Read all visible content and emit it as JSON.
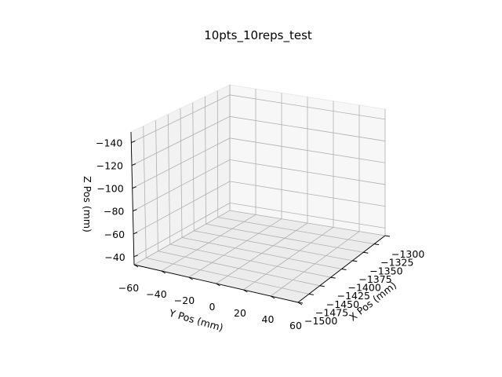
{
  "chart_data": {
    "type": "scatter",
    "projection": "3d",
    "title": "10pts_10reps_test",
    "xlabel": "X Pos (mm)",
    "ylabel": "Y Pos (mm)",
    "zlabel": "Z Pos (mm)",
    "x_ticks": [
      "−1300",
      "−1325",
      "−1350",
      "−1375",
      "−1400",
      "−1425",
      "−1450",
      "−1475",
      "−1500"
    ],
    "y_ticks": [
      "−60",
      "−40",
      "−20",
      "0",
      "20",
      "40",
      "60"
    ],
    "z_ticks": [
      "−140",
      "−120",
      "−100",
      "−80",
      "−60",
      "−40"
    ],
    "xlim": [
      -1500,
      -1300
    ],
    "ylim": [
      -60,
      60
    ],
    "zlim": [
      -40,
      -150
    ],
    "grid": true,
    "series": []
  }
}
